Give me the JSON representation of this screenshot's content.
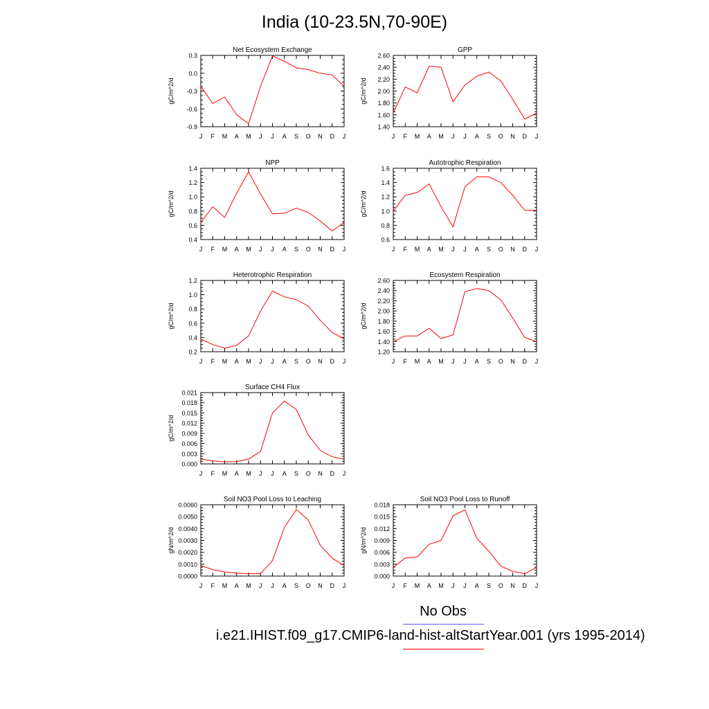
{
  "figure_title": "India (10-23.5N,70-90E)",
  "legend": {
    "obs_label": "No Obs",
    "obs_color": "#5a5aff",
    "model_label": "i.e21.IHIST.f09_g17.CMIP6-land-hist-altStartYear.001 (yrs 1995-2014)",
    "model_color": "#ff0000"
  },
  "chart_data": [
    {
      "type": "line",
      "title": "Net Ecosystem Exchange",
      "ylabel": "gC/m^2/d",
      "x": [
        "J",
        "F",
        "M",
        "A",
        "M",
        "J",
        "J",
        "A",
        "S",
        "O",
        "N",
        "D",
        "J"
      ],
      "ylim": [
        -0.9,
        0.3
      ],
      "yticks": [
        -0.9,
        -0.6,
        -0.3,
        0.0,
        0.3
      ],
      "ytick_labels": [
        "-0.9",
        "-0.6",
        "-0.3",
        "0.0",
        "0.3"
      ],
      "series": [
        {
          "values": [
            -0.22,
            -0.51,
            -0.4,
            -0.7,
            -0.85,
            -0.22,
            0.29,
            0.2,
            0.09,
            0.06,
            0.0,
            -0.03,
            -0.22
          ]
        }
      ]
    },
    {
      "type": "line",
      "title": "GPP",
      "ylabel": "gC/m^2/d",
      "x": [
        "J",
        "F",
        "M",
        "A",
        "M",
        "J",
        "J",
        "A",
        "S",
        "O",
        "N",
        "D",
        "J"
      ],
      "ylim": [
        1.4,
        2.6
      ],
      "yticks": [
        1.4,
        1.6,
        1.8,
        2.0,
        2.2,
        2.4,
        2.6
      ],
      "ytick_labels": [
        "1.40",
        "1.60",
        "1.80",
        "2.00",
        "2.20",
        "2.40",
        "2.60"
      ],
      "series": [
        {
          "values": [
            1.63,
            2.07,
            1.97,
            2.42,
            2.4,
            1.82,
            2.1,
            2.25,
            2.32,
            2.17,
            1.86,
            1.53,
            1.63
          ]
        }
      ]
    },
    {
      "type": "line",
      "title": "NPP",
      "ylabel": "gC/m^2/d",
      "x": [
        "J",
        "F",
        "M",
        "A",
        "M",
        "J",
        "J",
        "A",
        "S",
        "O",
        "N",
        "D",
        "J"
      ],
      "ylim": [
        0.4,
        1.4
      ],
      "yticks": [
        0.4,
        0.6,
        0.8,
        1.0,
        1.2,
        1.4
      ],
      "ytick_labels": [
        "0.4",
        "0.6",
        "0.8",
        "1.0",
        "1.2",
        "1.4"
      ],
      "series": [
        {
          "values": [
            0.64,
            0.86,
            0.71,
            1.05,
            1.35,
            1.04,
            0.76,
            0.77,
            0.84,
            0.78,
            0.66,
            0.52,
            0.64
          ]
        }
      ]
    },
    {
      "type": "line",
      "title": "Autotrophic Respiration",
      "ylabel": "gC/m^2/d",
      "x": [
        "J",
        "F",
        "M",
        "A",
        "M",
        "J",
        "J",
        "A",
        "S",
        "O",
        "N",
        "D",
        "J"
      ],
      "ylim": [
        0.6,
        1.6
      ],
      "yticks": [
        0.6,
        0.8,
        1.0,
        1.2,
        1.4,
        1.6
      ],
      "ytick_labels": [
        "0.6",
        "0.8",
        "1.0",
        "1.2",
        "1.4",
        "1.6"
      ],
      "series": [
        {
          "values": [
            1.0,
            1.22,
            1.26,
            1.38,
            1.06,
            0.78,
            1.34,
            1.48,
            1.48,
            1.4,
            1.22,
            1.01,
            1.01
          ]
        }
      ]
    },
    {
      "type": "line",
      "title": "Heterotrophic Respiration",
      "ylabel": "gC/m^2/d",
      "x": [
        "J",
        "F",
        "M",
        "A",
        "M",
        "J",
        "J",
        "A",
        "S",
        "O",
        "N",
        "D",
        "J"
      ],
      "ylim": [
        0.2,
        1.2
      ],
      "yticks": [
        0.2,
        0.4,
        0.6,
        0.8,
        1.0,
        1.2
      ],
      "ytick_labels": [
        "0.2",
        "0.4",
        "0.6",
        "0.8",
        "1.0",
        "1.2"
      ],
      "series": [
        {
          "values": [
            0.38,
            0.3,
            0.25,
            0.29,
            0.42,
            0.77,
            1.05,
            0.97,
            0.93,
            0.84,
            0.64,
            0.47,
            0.38
          ]
        }
      ]
    },
    {
      "type": "line",
      "title": "Ecosystem Respiration",
      "ylabel": "gC/m^2/d",
      "x": [
        "J",
        "F",
        "M",
        "A",
        "M",
        "J",
        "J",
        "A",
        "S",
        "O",
        "N",
        "D",
        "J"
      ],
      "ylim": [
        1.2,
        2.6
      ],
      "yticks": [
        1.2,
        1.4,
        1.6,
        1.8,
        2.0,
        2.2,
        2.4,
        2.6
      ],
      "ytick_labels": [
        "1.20",
        "1.40",
        "1.60",
        "1.80",
        "2.00",
        "2.20",
        "2.40",
        "2.60"
      ],
      "series": [
        {
          "values": [
            1.4,
            1.51,
            1.51,
            1.66,
            1.46,
            1.53,
            2.38,
            2.44,
            2.4,
            2.22,
            1.86,
            1.48,
            1.4
          ]
        }
      ]
    },
    {
      "type": "line",
      "title": "Surface CH4 Flux",
      "ylabel": "gC/m^2/d",
      "x": [
        "J",
        "F",
        "M",
        "A",
        "M",
        "J",
        "J",
        "A",
        "S",
        "O",
        "N",
        "D",
        "J"
      ],
      "ylim": [
        0.0,
        0.021
      ],
      "yticks": [
        0.0,
        0.003,
        0.006,
        0.009,
        0.012,
        0.015,
        0.018,
        0.021
      ],
      "ytick_labels": [
        "0.000",
        "0.003",
        "0.006",
        "0.009",
        "0.012",
        "0.015",
        "0.018",
        "0.021"
      ],
      "series": [
        {
          "values": [
            0.0014,
            0.0009,
            0.0006,
            0.0007,
            0.0014,
            0.0037,
            0.015,
            0.0185,
            0.016,
            0.0085,
            0.004,
            0.0021,
            0.0014
          ]
        }
      ]
    },
    {
      "type": "line",
      "title": "Soil NO3 Pool Loss to Leaching",
      "ylabel": "gN/m^2/d",
      "x": [
        "J",
        "F",
        "M",
        "A",
        "M",
        "J",
        "J",
        "A",
        "S",
        "O",
        "N",
        "D",
        "J"
      ],
      "ylim": [
        0.0,
        0.006
      ],
      "yticks": [
        0.0,
        0.001,
        0.002,
        0.003,
        0.004,
        0.005,
        0.006
      ],
      "ytick_labels": [
        "0.0000",
        "0.0010",
        "0.0020",
        "0.0030",
        "0.0040",
        "0.0050",
        "0.0060"
      ],
      "series": [
        {
          "values": [
            0.00088,
            0.00055,
            0.00035,
            0.00025,
            0.0002,
            0.0002,
            0.0013,
            0.0041,
            0.0056,
            0.0047,
            0.0026,
            0.0015,
            0.00088
          ]
        }
      ]
    },
    {
      "type": "line",
      "title": "Soil NO3 Pool Loss to Runoff",
      "ylabel": "gN/m^2/d",
      "x": [
        "J",
        "F",
        "M",
        "A",
        "M",
        "J",
        "J",
        "A",
        "S",
        "O",
        "N",
        "D",
        "J"
      ],
      "ylim": [
        0.0,
        0.018
      ],
      "yticks": [
        0.0,
        0.003,
        0.006,
        0.009,
        0.012,
        0.015,
        0.018
      ],
      "ytick_labels": [
        "0.000",
        "0.003",
        "0.006",
        "0.009",
        "0.012",
        "0.015",
        "0.018"
      ],
      "series": [
        {
          "values": [
            0.0022,
            0.0046,
            0.0048,
            0.008,
            0.009,
            0.0152,
            0.0167,
            0.0095,
            0.0063,
            0.0025,
            0.0012,
            0.0006,
            0.0022
          ]
        }
      ]
    }
  ]
}
